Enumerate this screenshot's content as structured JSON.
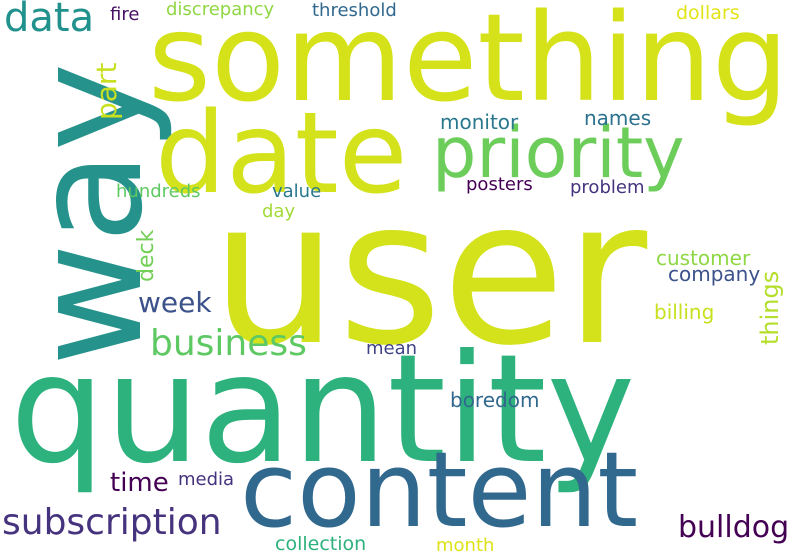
{
  "background": "#ffffff",
  "words": [
    {
      "id": "user",
      "text": "user",
      "color": "#d3e21b"
    },
    {
      "id": "quantity",
      "text": "quantity",
      "color": "#2db27d"
    },
    {
      "id": "something",
      "text": "something",
      "color": "#d5e21a"
    },
    {
      "id": "way",
      "text": "way",
      "color": "#25938b"
    },
    {
      "id": "date",
      "text": "date",
      "color": "#d3e21b"
    },
    {
      "id": "content",
      "text": "content",
      "color": "#31688e"
    },
    {
      "id": "priority",
      "text": "priority",
      "color": "#6ccd5a"
    },
    {
      "id": "subscription",
      "text": "subscription",
      "color": "#46337e"
    },
    {
      "id": "business",
      "text": "business",
      "color": "#5ec962"
    },
    {
      "id": "bulldog",
      "text": "bulldog",
      "color": "#440154"
    },
    {
      "id": "data",
      "text": "data",
      "color": "#21918c"
    },
    {
      "id": "part",
      "text": "part",
      "color": "#c8e020"
    },
    {
      "id": "week",
      "text": "week",
      "color": "#3b528b"
    },
    {
      "id": "things",
      "text": "things",
      "color": "#b5de2b"
    },
    {
      "id": "time",
      "text": "time",
      "color": "#440154"
    },
    {
      "id": "deck",
      "text": "deck",
      "color": "#73d056"
    },
    {
      "id": "monitor",
      "text": "monitor",
      "color": "#2a788e"
    },
    {
      "id": "names",
      "text": "names",
      "color": "#2c728e"
    },
    {
      "id": "customer",
      "text": "customer",
      "color": "#8fd744"
    },
    {
      "id": "company",
      "text": "company",
      "color": "#3b528b"
    },
    {
      "id": "billing",
      "text": "billing",
      "color": "#c8e020"
    },
    {
      "id": "hundreds",
      "text": "hundreds",
      "color": "#5ec962"
    },
    {
      "id": "value",
      "text": "value",
      "color": "#2a788e"
    },
    {
      "id": "day",
      "text": "day",
      "color": "#a2da37"
    },
    {
      "id": "posters",
      "text": "posters",
      "color": "#440154"
    },
    {
      "id": "problem",
      "text": "problem",
      "color": "#46337e"
    },
    {
      "id": "mean",
      "text": "mean",
      "color": "#414487"
    },
    {
      "id": "boredom",
      "text": "boredom",
      "color": "#31688e"
    },
    {
      "id": "media",
      "text": "media",
      "color": "#46337e"
    },
    {
      "id": "collection",
      "text": "collection",
      "color": "#2db27d"
    },
    {
      "id": "month",
      "text": "month",
      "color": "#dde318"
    },
    {
      "id": "fire",
      "text": "fire",
      "color": "#471063"
    },
    {
      "id": "discrepancy",
      "text": "discrepancy",
      "color": "#8fd744"
    },
    {
      "id": "threshold",
      "text": "threshold",
      "color": "#31688e"
    },
    {
      "id": "dollars",
      "text": "dollars",
      "color": "#e2e418"
    }
  ]
}
